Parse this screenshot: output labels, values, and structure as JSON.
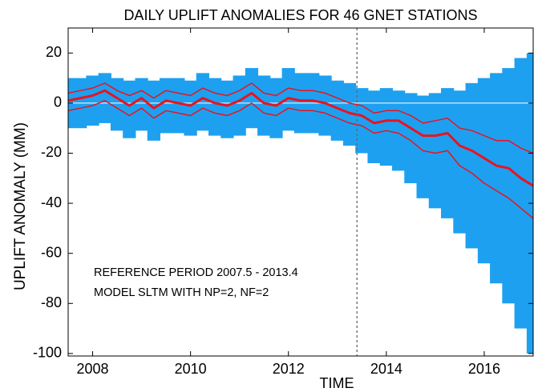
{
  "chart_data": {
    "type": "band-line",
    "title": "DAILY UPLIFT ANOMALIES FOR 46 GNET STATIONS",
    "x_label": "TIME",
    "y_label": "UPLIFT  ANOMALY  (MM)",
    "annotations": [
      "REFERENCE PERIOD 2007.5 - 2013.4",
      "MODEL SLTM WITH NP=2, NF=2"
    ],
    "reference_line_x": 2013.4,
    "xlim": [
      2007.5,
      2017
    ],
    "ylim": [
      -101,
      30
    ],
    "xticks": [
      2008,
      2010,
      2012,
      2014,
      2016
    ],
    "yticks": [
      -100,
      -80,
      -60,
      -40,
      -20,
      0,
      20
    ],
    "zero_line": true,
    "x": [
      2007.5,
      2007.75,
      2008,
      2008.25,
      2008.5,
      2008.75,
      2009,
      2009.25,
      2009.5,
      2009.75,
      2010,
      2010.25,
      2010.5,
      2010.75,
      2011,
      2011.25,
      2011.5,
      2011.75,
      2012,
      2012.25,
      2012.5,
      2012.75,
      2013,
      2013.25,
      2013.5,
      2013.75,
      2014,
      2014.25,
      2014.5,
      2014.75,
      2015,
      2015.25,
      2015.5,
      2015.75,
      2016,
      2016.25,
      2016.5,
      2016.75,
      2017
    ],
    "band": {
      "color": "#1ea0f0",
      "upper": [
        10,
        10,
        11,
        12,
        10,
        9,
        10,
        9,
        10,
        10,
        9,
        12,
        10,
        9,
        11,
        14,
        11,
        10,
        14,
        12,
        12,
        11,
        9,
        8,
        6,
        5,
        6,
        5,
        4,
        3,
        4,
        6,
        5,
        8,
        10,
        12,
        14,
        18,
        20
      ],
      "lower": [
        -10,
        -10,
        -9,
        -8,
        -11,
        -14,
        -11,
        -15,
        -12,
        -12,
        -13,
        -11,
        -13,
        -14,
        -13,
        -10,
        -13,
        -14,
        -11,
        -12,
        -12,
        -13,
        -15,
        -17,
        -20,
        -24,
        -25,
        -27,
        -32,
        -38,
        -42,
        -46,
        -52,
        -58,
        -64,
        -72,
        -80,
        -90,
        -100
      ]
    },
    "series": [
      {
        "color": "#e8141e",
        "width": 1.5,
        "values": [
          4,
          5,
          6,
          8,
          5,
          3,
          5,
          2,
          5,
          4,
          3,
          6,
          4,
          3,
          5,
          8,
          4,
          3,
          6,
          5,
          5,
          4,
          2,
          0,
          -1,
          -4,
          -3,
          -3,
          -5,
          -8,
          -7,
          -6,
          -10,
          -11,
          -13,
          -15,
          -15,
          -18,
          -20
        ]
      },
      {
        "color": "#e8141e",
        "width": 3,
        "values": [
          1,
          2,
          3,
          5,
          2,
          -1,
          2,
          -2,
          1,
          0,
          -1,
          2,
          0,
          -1,
          1,
          4,
          0,
          -1,
          2,
          1,
          1,
          0,
          -2,
          -4,
          -5,
          -8,
          -7,
          -7,
          -10,
          -13,
          -13,
          -12,
          -17,
          -19,
          -22,
          -25,
          -26,
          -30,
          -33
        ]
      },
      {
        "color": "#e8141e",
        "width": 1.5,
        "values": [
          -3,
          -2,
          -1,
          1,
          -2,
          -5,
          -2,
          -6,
          -3,
          -4,
          -5,
          -2,
          -4,
          -5,
          -3,
          0,
          -4,
          -5,
          -2,
          -3,
          -3,
          -4,
          -6,
          -8,
          -9,
          -12,
          -11,
          -12,
          -15,
          -19,
          -20,
          -19,
          -25,
          -28,
          -32,
          -35,
          -38,
          -42,
          -46
        ]
      }
    ]
  }
}
